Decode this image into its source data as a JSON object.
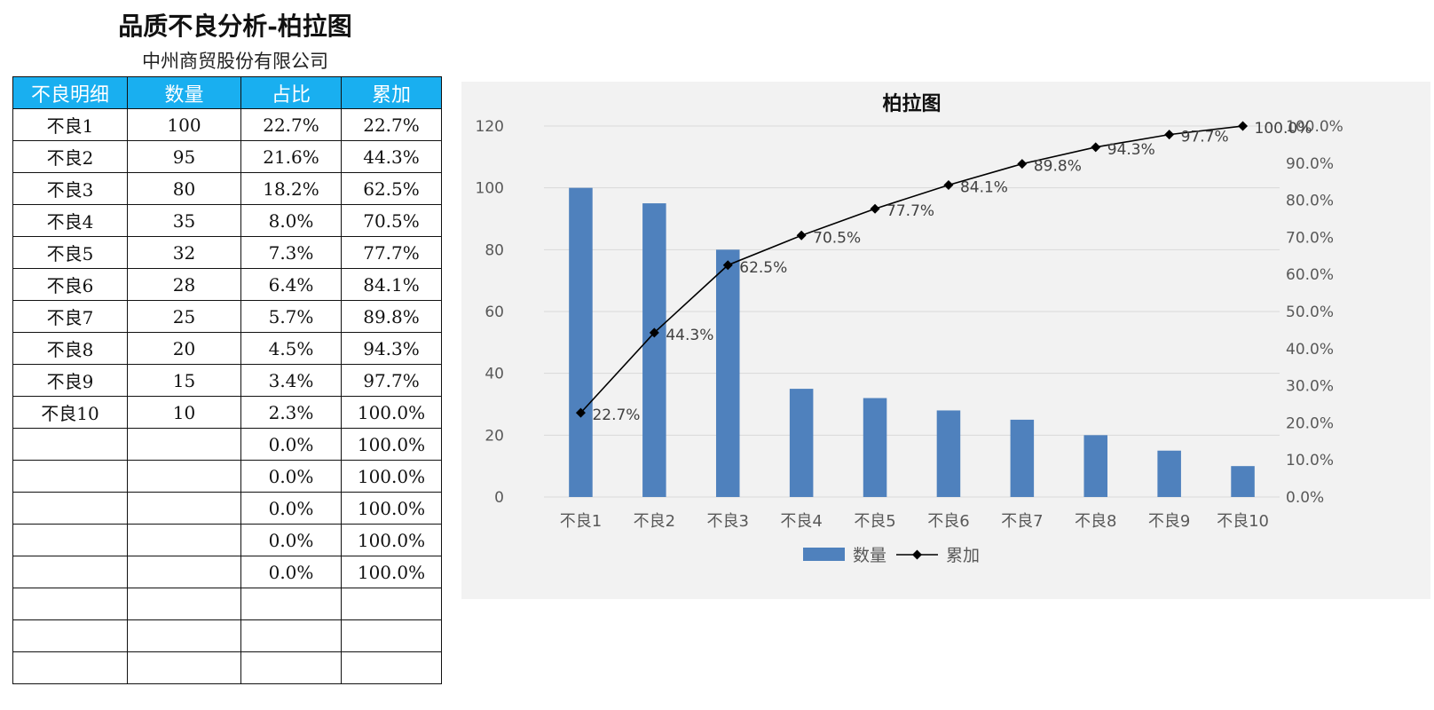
{
  "page": {
    "title": "品质不良分析-柏拉图",
    "subtitle": "中州商贸股份有限公司"
  },
  "table": {
    "headers": [
      "不良明细",
      "数量",
      "占比",
      "累加"
    ],
    "rows": [
      [
        "不良1",
        "100",
        "22.7%",
        "22.7%"
      ],
      [
        "不良2",
        "95",
        "21.6%",
        "44.3%"
      ],
      [
        "不良3",
        "80",
        "18.2%",
        "62.5%"
      ],
      [
        "不良4",
        "35",
        "8.0%",
        "70.5%"
      ],
      [
        "不良5",
        "32",
        "7.3%",
        "77.7%"
      ],
      [
        "不良6",
        "28",
        "6.4%",
        "84.1%"
      ],
      [
        "不良7",
        "25",
        "5.7%",
        "89.8%"
      ],
      [
        "不良8",
        "20",
        "4.5%",
        "94.3%"
      ],
      [
        "不良9",
        "15",
        "3.4%",
        "97.7%"
      ],
      [
        "不良10",
        "10",
        "2.3%",
        "100.0%"
      ],
      [
        "",
        "",
        "0.0%",
        "100.0%"
      ],
      [
        "",
        "",
        "0.0%",
        "100.0%"
      ],
      [
        "",
        "",
        "0.0%",
        "100.0%"
      ],
      [
        "",
        "",
        "0.0%",
        "100.0%"
      ],
      [
        "",
        "",
        "0.0%",
        "100.0%"
      ],
      [
        "",
        "",
        "",
        ""
      ],
      [
        "",
        "",
        "",
        ""
      ],
      [
        "",
        "",
        "",
        ""
      ]
    ]
  },
  "chart_data": {
    "type": "bar",
    "title": "柏拉图",
    "categories": [
      "不良1",
      "不良2",
      "不良3",
      "不良4",
      "不良5",
      "不良6",
      "不良7",
      "不良8",
      "不良9",
      "不良10"
    ],
    "series": [
      {
        "name": "数量",
        "type": "bar",
        "axis": "left",
        "values": [
          100,
          95,
          80,
          35,
          32,
          28,
          25,
          20,
          15,
          10
        ]
      },
      {
        "name": "累加",
        "type": "line",
        "axis": "right",
        "values": [
          22.7,
          44.3,
          62.5,
          70.5,
          77.7,
          84.1,
          89.8,
          94.3,
          97.7,
          100.0
        ],
        "data_labels": [
          "22.7%",
          "44.3%",
          "62.5%",
          "70.5%",
          "77.7%",
          "84.1%",
          "89.8%",
          "94.3%",
          "97.7%",
          "100.0%"
        ]
      }
    ],
    "y_left": {
      "lim": [
        0,
        120
      ],
      "ticks": [
        0,
        20,
        40,
        60,
        80,
        100,
        120
      ]
    },
    "y_right": {
      "lim": [
        0,
        100
      ],
      "tick_values": [
        0,
        10,
        20,
        30,
        40,
        50,
        60,
        70,
        80,
        90,
        100
      ],
      "tick_labels": [
        "0.0%",
        "10.0%",
        "20.0%",
        "30.0%",
        "40.0%",
        "50.0%",
        "60.0%",
        "70.0%",
        "80.0%",
        "90.0%",
        "100.0%"
      ]
    },
    "grid": true,
    "legend": "bottom",
    "colors": {
      "bar": "#4f81bd",
      "line": "#000000",
      "grid": "#d9d9d9",
      "background": "#f2f2f2"
    }
  },
  "table_header_color": "#19aff0"
}
